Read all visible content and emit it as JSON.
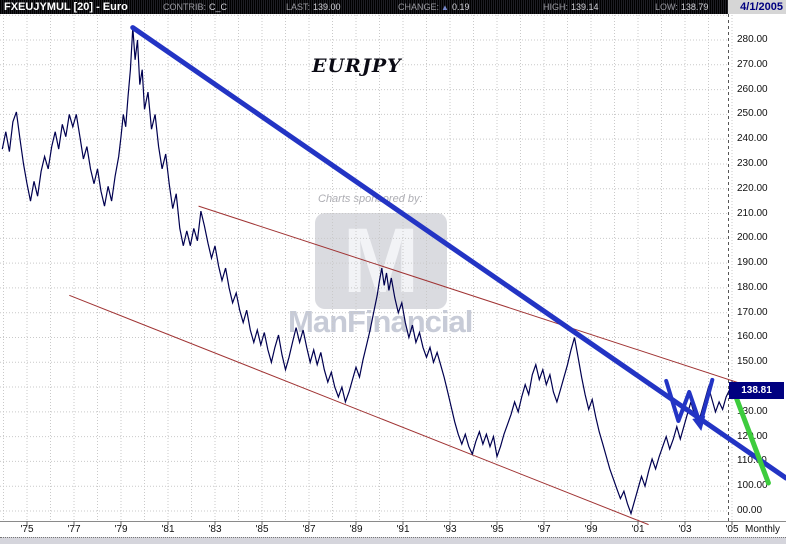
{
  "header": {
    "title": "FXEUJYMUL [20] - Euro",
    "fields": [
      {
        "label": "CONTRIB:",
        "value": "C_C"
      },
      {
        "label": "LAST:",
        "value": "139.00"
      },
      {
        "label": "CHANGE:",
        "arrow": "▲",
        "value": "0.19"
      },
      {
        "label": "HIGH:",
        "value": "139.14"
      },
      {
        "label": "LOW:",
        "value": "138.79"
      }
    ],
    "date": "4/1/2005"
  },
  "watermark": {
    "tagline": "Charts sponsored by:",
    "logo_letter": "M",
    "brand": "ManFinancial"
  },
  "annotation_label": "EURJPY",
  "y_axis": {
    "current_price_label": "138.81",
    "labels": [
      {
        "text": "280.00",
        "price": 280
      },
      {
        "text": "270.00",
        "price": 270
      },
      {
        "text": "260.00",
        "price": 260
      },
      {
        "text": "250.00",
        "price": 250
      },
      {
        "text": "240.00",
        "price": 240
      },
      {
        "text": "230.00",
        "price": 230
      },
      {
        "text": "220.00",
        "price": 220
      },
      {
        "text": "210.00",
        "price": 210
      },
      {
        "text": "200.00",
        "price": 200
      },
      {
        "text": "190.00",
        "price": 190
      },
      {
        "text": "180.00",
        "price": 180
      },
      {
        "text": "170.00",
        "price": 170
      },
      {
        "text": "160.00",
        "price": 160
      },
      {
        "text": "150.00",
        "price": 150
      },
      {
        "text": "130.00",
        "price": 130
      },
      {
        "text": "120.00",
        "price": 120
      },
      {
        "text": "110.00",
        "price": 110
      },
      {
        "text": "100.00",
        "price": 100
      },
      {
        "text": "00.00",
        "price": 90
      }
    ]
  },
  "x_axis": {
    "labels": [
      {
        "text": "'75",
        "year": 1975
      },
      {
        "text": "'77",
        "year": 1977
      },
      {
        "text": "'79",
        "year": 1979
      },
      {
        "text": "'81",
        "year": 1981
      },
      {
        "text": "'83",
        "year": 1983
      },
      {
        "text": "'85",
        "year": 1985
      },
      {
        "text": "'87",
        "year": 1987
      },
      {
        "text": "'89",
        "year": 1989
      },
      {
        "text": "'91",
        "year": 1991
      },
      {
        "text": "'93",
        "year": 1993
      },
      {
        "text": "'95",
        "year": 1995
      },
      {
        "text": "'97",
        "year": 1997
      },
      {
        "text": "'99",
        "year": 1999
      },
      {
        "text": "'01",
        "year": 2001
      },
      {
        "text": "'03",
        "year": 2003
      },
      {
        "text": "'05",
        "year": 2005
      }
    ],
    "timeframe_label": "Monthly"
  },
  "palette": {
    "series": "#000050",
    "trend_blue": "#2334c4",
    "channel_red": "#a03434",
    "trend_green": "#3dcc3d",
    "grid": "#c9c9c9",
    "separator": "#555555",
    "axis_line": "#8a8a8a",
    "current_bg": "#000080"
  },
  "chart_data": {
    "type": "line",
    "title": "EURJPY",
    "symbol": "FXEUJYMUL [20] - Euro",
    "timeframe": "Monthly",
    "last": 139.0,
    "change": 0.19,
    "high": 139.14,
    "low": 138.79,
    "current_price": 138.81,
    "x_range_years": [
      1973.9,
      2005.4
    ],
    "y_range": [
      88,
      291
    ],
    "y_gridline_prices": [
      290,
      280,
      270,
      260,
      250,
      240,
      230,
      220,
      210,
      200,
      190,
      180,
      170,
      160,
      150,
      140,
      130,
      120,
      110,
      100,
      90
    ],
    "x_gridline_years_from": 1974,
    "x_gridline_years_to": 2005,
    "series": [
      {
        "name": "EURJPY monthly",
        "color_key": "series",
        "points": [
          [
            1973.95,
            236
          ],
          [
            1974.1,
            243
          ],
          [
            1974.25,
            235
          ],
          [
            1974.4,
            247
          ],
          [
            1974.55,
            251
          ],
          [
            1974.7,
            240
          ],
          [
            1974.85,
            230
          ],
          [
            1975.0,
            222
          ],
          [
            1975.15,
            215
          ],
          [
            1975.3,
            223
          ],
          [
            1975.45,
            217
          ],
          [
            1975.6,
            227
          ],
          [
            1975.75,
            233
          ],
          [
            1975.9,
            228
          ],
          [
            1976.05,
            237
          ],
          [
            1976.2,
            243
          ],
          [
            1976.35,
            236
          ],
          [
            1976.5,
            246
          ],
          [
            1976.65,
            241
          ],
          [
            1976.8,
            250
          ],
          [
            1976.95,
            245
          ],
          [
            1977.1,
            250
          ],
          [
            1977.25,
            241
          ],
          [
            1977.4,
            232
          ],
          [
            1977.55,
            237
          ],
          [
            1977.7,
            228
          ],
          [
            1977.85,
            222
          ],
          [
            1978.0,
            228
          ],
          [
            1978.15,
            219
          ],
          [
            1978.3,
            213
          ],
          [
            1978.45,
            221
          ],
          [
            1978.6,
            215
          ],
          [
            1978.75,
            225
          ],
          [
            1978.9,
            233
          ],
          [
            1979.0,
            241
          ],
          [
            1979.1,
            250
          ],
          [
            1979.2,
            245
          ],
          [
            1979.3,
            257
          ],
          [
            1979.4,
            268
          ],
          [
            1979.5,
            285
          ],
          [
            1979.6,
            272
          ],
          [
            1979.7,
            280
          ],
          [
            1979.8,
            262
          ],
          [
            1979.9,
            268
          ],
          [
            1980.0,
            252
          ],
          [
            1980.15,
            259
          ],
          [
            1980.3,
            244
          ],
          [
            1980.45,
            250
          ],
          [
            1980.6,
            237
          ],
          [
            1980.75,
            228
          ],
          [
            1980.9,
            234
          ],
          [
            1981.05,
            222
          ],
          [
            1981.2,
            212
          ],
          [
            1981.35,
            218
          ],
          [
            1981.5,
            204
          ],
          [
            1981.65,
            197
          ],
          [
            1981.8,
            203
          ],
          [
            1981.95,
            197
          ],
          [
            1982.1,
            204
          ],
          [
            1982.25,
            199
          ],
          [
            1982.4,
            211
          ],
          [
            1982.55,
            205
          ],
          [
            1982.7,
            198
          ],
          [
            1982.85,
            192
          ],
          [
            1983.0,
            197
          ],
          [
            1983.15,
            189
          ],
          [
            1983.3,
            183
          ],
          [
            1983.45,
            188
          ],
          [
            1983.6,
            180
          ],
          [
            1983.75,
            174
          ],
          [
            1983.9,
            178
          ],
          [
            1984.05,
            171
          ],
          [
            1984.2,
            166
          ],
          [
            1984.35,
            171
          ],
          [
            1984.5,
            163
          ],
          [
            1984.65,
            158
          ],
          [
            1984.8,
            163
          ],
          [
            1984.95,
            157
          ],
          [
            1985.1,
            162
          ],
          [
            1985.25,
            155
          ],
          [
            1985.4,
            150
          ],
          [
            1985.55,
            156
          ],
          [
            1985.7,
            161
          ],
          [
            1985.85,
            153
          ],
          [
            1986.0,
            147
          ],
          [
            1986.15,
            152
          ],
          [
            1986.3,
            158
          ],
          [
            1986.45,
            164
          ],
          [
            1986.6,
            158
          ],
          [
            1986.75,
            163
          ],
          [
            1986.9,
            156
          ],
          [
            1987.05,
            150
          ],
          [
            1987.2,
            155
          ],
          [
            1987.35,
            149
          ],
          [
            1987.5,
            154
          ],
          [
            1987.65,
            147
          ],
          [
            1987.8,
            142
          ],
          [
            1987.95,
            146
          ],
          [
            1988.1,
            140
          ],
          [
            1988.25,
            136
          ],
          [
            1988.4,
            140
          ],
          [
            1988.55,
            134
          ],
          [
            1988.7,
            138
          ],
          [
            1988.85,
            143
          ],
          [
            1989.0,
            148
          ],
          [
            1989.15,
            144
          ],
          [
            1989.3,
            151
          ],
          [
            1989.45,
            157
          ],
          [
            1989.6,
            163
          ],
          [
            1989.75,
            170
          ],
          [
            1989.9,
            177
          ],
          [
            1990.0,
            183
          ],
          [
            1990.1,
            188
          ],
          [
            1990.2,
            181
          ],
          [
            1990.3,
            186
          ],
          [
            1990.4,
            179
          ],
          [
            1990.5,
            184
          ],
          [
            1990.65,
            176
          ],
          [
            1990.8,
            170
          ],
          [
            1990.95,
            174
          ],
          [
            1991.1,
            166
          ],
          [
            1991.25,
            160
          ],
          [
            1991.4,
            165
          ],
          [
            1991.55,
            158
          ],
          [
            1991.7,
            162
          ],
          [
            1991.85,
            156
          ],
          [
            1992.0,
            152
          ],
          [
            1992.15,
            156
          ],
          [
            1992.3,
            150
          ],
          [
            1992.45,
            154
          ],
          [
            1992.6,
            149
          ],
          [
            1992.75,
            144
          ],
          [
            1992.9,
            138
          ],
          [
            1993.05,
            132
          ],
          [
            1993.2,
            126
          ],
          [
            1993.35,
            121
          ],
          [
            1993.5,
            117
          ],
          [
            1993.65,
            121
          ],
          [
            1993.8,
            116
          ],
          [
            1993.95,
            113
          ],
          [
            1994.1,
            118
          ],
          [
            1994.25,
            122
          ],
          [
            1994.4,
            117
          ],
          [
            1994.55,
            121
          ],
          [
            1994.7,
            116
          ],
          [
            1994.85,
            120
          ],
          [
            1995.0,
            112
          ],
          [
            1995.15,
            116
          ],
          [
            1995.3,
            121
          ],
          [
            1995.45,
            125
          ],
          [
            1995.6,
            129
          ],
          [
            1995.75,
            134
          ],
          [
            1995.9,
            130
          ],
          [
            1996.05,
            136
          ],
          [
            1996.2,
            141
          ],
          [
            1996.35,
            137
          ],
          [
            1996.5,
            145
          ],
          [
            1996.65,
            149
          ],
          [
            1996.8,
            143
          ],
          [
            1996.95,
            147
          ],
          [
            1997.1,
            141
          ],
          [
            1997.25,
            145
          ],
          [
            1997.4,
            138
          ],
          [
            1997.55,
            134
          ],
          [
            1997.7,
            139
          ],
          [
            1997.85,
            144
          ],
          [
            1998.0,
            149
          ],
          [
            1998.15,
            155
          ],
          [
            1998.3,
            160
          ],
          [
            1998.45,
            152
          ],
          [
            1998.6,
            144
          ],
          [
            1998.75,
            137
          ],
          [
            1998.9,
            131
          ],
          [
            1999.05,
            135
          ],
          [
            1999.2,
            128
          ],
          [
            1999.35,
            122
          ],
          [
            1999.5,
            117
          ],
          [
            1999.65,
            112
          ],
          [
            1999.8,
            107
          ],
          [
            1999.95,
            103
          ],
          [
            2000.1,
            99
          ],
          [
            2000.25,
            95
          ],
          [
            2000.4,
            98
          ],
          [
            2000.55,
            93
          ],
          [
            2000.7,
            89
          ],
          [
            2000.85,
            94
          ],
          [
            2001.0,
            99
          ],
          [
            2001.15,
            104
          ],
          [
            2001.3,
            100
          ],
          [
            2001.45,
            106
          ],
          [
            2001.6,
            111
          ],
          [
            2001.75,
            107
          ],
          [
            2001.9,
            112
          ],
          [
            2002.05,
            116
          ],
          [
            2002.2,
            120
          ],
          [
            2002.35,
            115
          ],
          [
            2002.5,
            119
          ],
          [
            2002.65,
            124
          ],
          [
            2002.8,
            119
          ],
          [
            2002.95,
            124
          ],
          [
            2003.1,
            129
          ],
          [
            2003.25,
            134
          ],
          [
            2003.4,
            129
          ],
          [
            2003.55,
            125
          ],
          [
            2003.7,
            130
          ],
          [
            2003.85,
            135
          ],
          [
            2004.0,
            140
          ],
          [
            2004.15,
            135
          ],
          [
            2004.3,
            130
          ],
          [
            2004.45,
            134
          ],
          [
            2004.6,
            131
          ],
          [
            2004.75,
            136
          ],
          [
            2004.9,
            139
          ],
          [
            2005.0,
            142
          ],
          [
            2005.1,
            138.8
          ]
        ]
      }
    ],
    "trendlines": [
      {
        "name": "major-downtrend-line",
        "color_key": "trend_blue",
        "width": 5,
        "points": [
          [
            1979.5,
            285
          ],
          [
            2007.3,
            103.3
          ]
        ]
      },
      {
        "name": "channel-upper-line",
        "color_key": "channel_red",
        "width": 1,
        "points": [
          [
            1982.3,
            213
          ],
          [
            2005.35,
            141.5
          ]
        ]
      },
      {
        "name": "channel-lower-line",
        "color_key": "channel_red",
        "width": 1,
        "points": [
          [
            1976.8,
            177
          ],
          [
            2001.45,
            84.5
          ]
        ]
      },
      {
        "name": "breakdown-green-line",
        "color_key": "trend_green",
        "width": 5,
        "points": [
          [
            2005.05,
            139
          ],
          [
            2006.55,
            101.3
          ]
        ]
      }
    ],
    "drawn_shapes": [
      {
        "name": "w-pattern-annotation",
        "color_key": "trend_blue",
        "width": 4,
        "points": [
          [
            2002.2,
            142.5
          ],
          [
            2002.72,
            126.3
          ],
          [
            2003.18,
            138
          ],
          [
            2003.65,
            125.1
          ],
          [
            2004.16,
            142.9
          ]
        ],
        "arrow_at_index": 3
      }
    ],
    "legend": [],
    "grid": true
  }
}
